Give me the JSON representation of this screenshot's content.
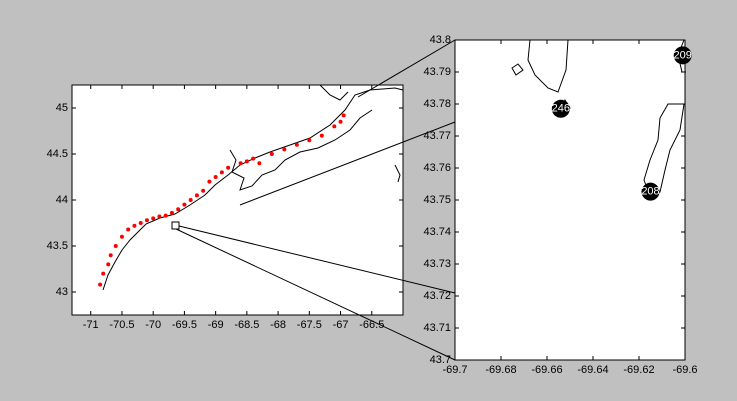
{
  "chart_data": [
    {
      "type": "scatter",
      "xlim": [
        -71.3,
        -66
      ],
      "ylim": [
        42.75,
        45.25
      ],
      "xticks": [
        -71,
        -70.5,
        -70,
        -69.5,
        -69,
        -68.5,
        -68,
        -67.5,
        -67,
        -66.5
      ],
      "yticks": [
        43,
        43.5,
        44,
        44.5,
        45
      ],
      "series": [
        {
          "color": "#ff0000",
          "x": [
            -70.85,
            -70.8,
            -70.72,
            -70.68,
            -70.6,
            -70.5,
            -70.4,
            -70.3,
            -70.2,
            -70.1,
            -70.0,
            -69.9,
            -69.8,
            -69.7,
            -69.6,
            -69.5,
            -69.4,
            -69.3,
            -69.2,
            -69.1,
            -69.0,
            -68.9,
            -68.8,
            -68.6,
            -68.5,
            -68.4,
            -68.3,
            -68.1,
            -67.9,
            -67.7,
            -67.5,
            -67.3,
            -67.1,
            -67.0,
            -66.95
          ],
          "values": [
            43.08,
            43.2,
            43.3,
            43.4,
            43.5,
            43.6,
            43.68,
            43.72,
            43.75,
            43.78,
            43.8,
            43.82,
            43.83,
            43.86,
            43.9,
            43.95,
            44.0,
            44.05,
            44.1,
            44.2,
            44.25,
            44.3,
            44.35,
            44.4,
            44.42,
            44.45,
            44.4,
            44.5,
            44.55,
            44.6,
            44.65,
            44.7,
            44.8,
            44.85,
            44.92
          ]
        }
      ]
    },
    {
      "type": "scatter",
      "xlim": [
        -69.7,
        -69.6
      ],
      "ylim": [
        43.7,
        43.8
      ],
      "xticks": [
        -69.7,
        -69.68,
        -69.66,
        -69.64,
        -69.62,
        -69.6
      ],
      "yticks": [
        43.7,
        43.71,
        43.72,
        43.73,
        43.74,
        43.75,
        43.76,
        43.77,
        43.78,
        43.79,
        43.8
      ],
      "series": [
        {
          "color": "#000000",
          "x": [
            -69.654,
            -69.601,
            -69.615
          ],
          "values": [
            43.7785,
            43.7952,
            43.7526
          ],
          "labels": [
            "246",
            "209",
            "208"
          ]
        }
      ]
    }
  ]
}
